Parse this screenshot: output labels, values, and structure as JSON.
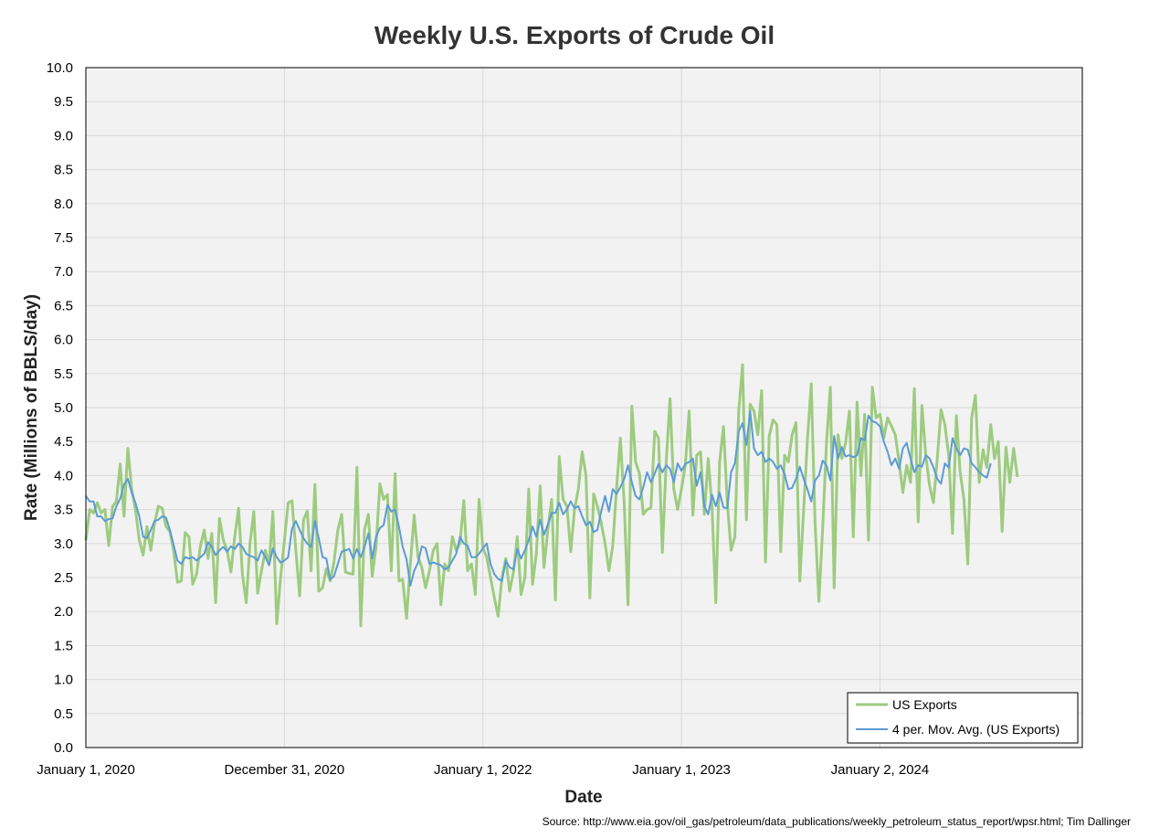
{
  "chart_data": {
    "type": "line",
    "title": "Weekly U.S. Exports of Crude Oil",
    "xlabel": "Date",
    "ylabel": "Rate (Millions of BBLS/day)",
    "source": "Source: http://www.eia.gov/oil_gas/petroleum/data_publications/weekly_petroleum_status_report/wpsr.html; Tim Dallinger",
    "ylim": [
      0,
      10
    ],
    "y_ticks": [
      "0.0",
      "0.5",
      "1.0",
      "1.5",
      "2.0",
      "2.5",
      "3.0",
      "3.5",
      "4.0",
      "4.5",
      "5.0",
      "5.5",
      "6.0",
      "6.5",
      "7.0",
      "7.5",
      "8.0",
      "8.5",
      "9.0",
      "9.5",
      "10.0"
    ],
    "x_ticks": [
      {
        "label": "January 1, 2020",
        "week": 0
      },
      {
        "label": "December 31, 2020",
        "week": 52
      },
      {
        "label": "January 1, 2022",
        "week": 104
      },
      {
        "label": "January 1, 2023",
        "week": 156
      },
      {
        "label": "January 2, 2024",
        "week": 208
      }
    ],
    "x_unit": "weeks since January 1, 2020",
    "xlim": [
      0,
      261
    ],
    "grid": true,
    "legend_position": "bottom-right",
    "colors": {
      "exports": "#9dcb7f",
      "moving_avg": "#5b9bd5",
      "plot_bg": "#f2f2f2",
      "grid": "#d9d9d9"
    },
    "series": [
      {
        "name": "US Exports",
        "values": [
          3.05,
          3.5,
          3.45,
          3.6,
          3.45,
          3.5,
          2.97,
          3.55,
          3.62,
          4.17,
          3.4,
          4.4,
          3.8,
          3.5,
          3.05,
          2.83,
          3.25,
          2.9,
          3.3,
          3.55,
          3.52,
          3.25,
          3.18,
          2.9,
          2.43,
          2.45,
          3.16,
          3.1,
          2.4,
          2.55,
          2.96,
          3.2,
          2.78,
          3.15,
          2.13,
          3.37,
          3.05,
          2.9,
          2.58,
          3.1,
          3.52,
          2.55,
          2.13,
          3.0,
          3.47,
          2.27,
          2.6,
          2.9,
          2.7,
          3.47,
          1.82,
          2.5,
          3.05,
          3.6,
          3.63,
          2.9,
          2.23,
          3.35,
          3.48,
          2.6,
          3.87,
          2.3,
          2.35,
          2.63,
          2.45,
          2.73,
          3.2,
          3.43,
          2.58,
          2.56,
          2.55,
          4.12,
          1.79,
          3.2,
          3.43,
          2.52,
          2.95,
          3.88,
          3.65,
          3.72,
          2.6,
          4.03,
          2.45,
          2.47,
          1.9,
          2.7,
          3.42,
          2.8,
          2.65,
          2.35,
          2.6,
          2.9,
          3.0,
          2.1,
          2.7,
          2.6,
          3.1,
          2.9,
          3.0,
          3.63,
          2.6,
          2.7,
          2.25,
          3.65,
          2.93,
          2.8,
          2.5,
          2.2,
          1.93,
          2.5,
          2.78,
          2.3,
          2.58,
          3.1,
          2.25,
          2.5,
          3.8,
          2.4,
          2.85,
          3.85,
          2.65,
          3.2,
          3.65,
          2.17,
          4.28,
          3.65,
          3.55,
          2.88,
          3.5,
          3.8,
          4.35,
          4.0,
          2.2,
          3.73,
          3.55,
          3.3,
          3.0,
          2.6,
          2.97,
          3.8,
          4.55,
          3.6,
          2.1,
          5.02,
          4.2,
          4.03,
          3.43,
          3.5,
          3.53,
          4.65,
          4.55,
          2.87,
          4.2,
          5.13,
          3.8,
          3.5,
          3.8,
          4.15,
          4.95,
          3.42,
          4.3,
          4.35,
          3.43,
          4.25,
          3.55,
          2.13,
          4.2,
          4.72,
          3.6,
          2.9,
          3.1,
          4.95,
          5.63,
          3.35,
          5.05,
          4.95,
          4.6,
          5.25,
          2.73,
          4.58,
          4.82,
          4.75,
          2.88,
          4.3,
          4.2,
          4.6,
          4.78,
          2.45,
          3.5,
          4.52,
          5.35,
          3.3,
          2.15,
          3.25,
          4.48,
          5.3,
          2.35,
          4.6,
          4.25,
          4.48,
          4.95,
          3.1,
          5.08,
          4.0,
          4.9,
          3.05,
          5.3,
          4.85,
          4.9,
          4.55,
          4.85,
          4.73,
          4.6,
          4.2,
          3.75,
          4.15,
          3.9,
          5.28,
          3.32,
          5.03,
          4.3,
          3.85,
          3.6,
          4.25,
          4.97,
          4.75,
          4.3,
          3.15,
          4.88,
          4.05,
          3.65,
          2.7,
          4.85,
          5.18,
          3.9,
          4.38,
          4.12,
          4.75,
          4.25,
          4.5,
          3.18,
          4.42,
          3.9,
          4.4,
          3.98
        ]
      },
      {
        "name": "4 per. Mov. Avg. (US Exports)",
        "values": [
          3.7,
          3.62,
          3.62,
          3.4,
          3.4,
          3.33,
          3.36,
          3.37,
          3.55,
          3.66,
          3.87,
          3.95,
          3.75,
          3.6,
          3.4,
          3.1,
          3.08,
          3.2,
          3.33,
          3.35,
          3.4,
          3.38,
          3.2,
          2.98,
          2.75,
          2.7,
          2.8,
          2.78,
          2.8,
          2.75,
          2.8,
          2.85,
          3.02,
          2.95,
          2.83,
          2.9,
          2.95,
          2.88,
          2.96,
          2.92,
          3.0,
          2.95,
          2.85,
          2.82,
          2.8,
          2.75,
          2.9,
          2.8,
          2.68,
          2.93,
          2.8,
          2.72,
          2.75,
          2.8,
          3.22,
          3.33,
          3.2,
          3.08,
          3.0,
          2.95,
          3.33,
          3.08,
          2.8,
          2.78,
          2.47,
          2.52,
          2.7,
          2.88,
          2.9,
          2.92,
          2.78,
          2.92,
          2.8,
          2.95,
          3.15,
          2.78,
          3.1,
          3.23,
          3.27,
          3.57,
          3.47,
          3.5,
          3.25,
          2.95,
          2.77,
          2.38,
          2.6,
          2.72,
          2.96,
          2.93,
          2.7,
          2.72,
          2.7,
          2.68,
          2.62,
          2.65,
          2.75,
          2.85,
          3.1,
          3.0,
          2.97,
          2.8,
          2.8,
          2.85,
          2.93,
          3.0,
          2.7,
          2.55,
          2.48,
          2.45,
          2.75,
          2.65,
          2.62,
          2.92,
          2.78,
          2.9,
          3.05,
          3.25,
          3.1,
          3.35,
          3.13,
          3.28,
          3.45,
          3.45,
          3.6,
          3.43,
          3.5,
          3.62,
          3.52,
          3.55,
          3.4,
          3.27,
          3.32,
          3.17,
          3.2,
          3.48,
          3.7,
          3.47,
          3.8,
          3.73,
          3.83,
          3.95,
          4.15,
          3.9,
          3.7,
          3.65,
          3.83,
          4.05,
          3.9,
          4.03,
          4.17,
          4.05,
          4.15,
          4.1,
          3.9,
          4.18,
          4.07,
          4.17,
          4.2,
          4.25,
          3.85,
          4.05,
          3.55,
          3.43,
          3.72,
          3.55,
          3.75,
          3.53,
          3.52,
          4.05,
          4.18,
          4.65,
          4.77,
          4.45,
          4.95,
          4.4,
          4.3,
          4.35,
          4.2,
          4.25,
          4.2,
          4.1,
          4.15,
          4.02,
          3.8,
          3.82,
          3.95,
          4.13,
          3.95,
          3.8,
          3.62,
          3.93,
          4.0,
          4.22,
          4.15,
          3.93,
          4.58,
          4.25,
          4.42,
          4.28,
          4.3,
          4.27,
          4.3,
          4.55,
          4.52,
          4.88,
          4.8,
          4.78,
          4.72,
          4.5,
          4.35,
          4.15,
          4.25,
          4.1,
          4.4,
          4.48,
          4.25,
          4.05,
          4.15,
          4.13,
          4.3,
          4.25,
          4.12,
          3.95,
          3.88,
          4.18,
          4.12,
          4.55,
          4.4,
          4.3,
          4.4,
          4.38,
          4.18,
          4.12,
          4.05,
          4.0,
          3.97,
          4.18
        ]
      }
    ]
  }
}
